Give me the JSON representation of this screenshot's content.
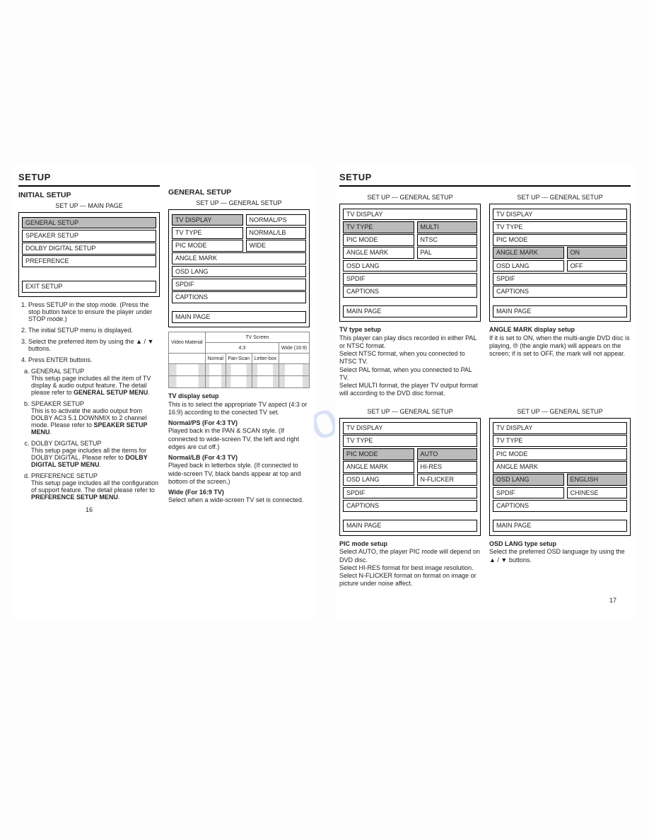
{
  "leftPage": {
    "heading": "SETUP",
    "colA": {
      "h2": "INITIAL SETUP",
      "sub": "SET UP --- MAIN PAGE",
      "menu": [
        {
          "label": "GENERAL SETUP",
          "sel": true
        },
        {
          "label": "SPEAKER SETUP"
        },
        {
          "label": "DOLBY DIGITAL SETUP"
        },
        {
          "label": "PREFERENCE"
        }
      ],
      "menuBottom": [
        {
          "label": "EXIT SETUP"
        }
      ],
      "steps": [
        "Press SETUP in the stop mode. (Press the stop button twice to ensure the player under STOP mode.)",
        "The initial SETUP menu is displayed.",
        "Select the preferred item by using the ▲ / ▼ buttons.",
        "Press ENTER buttons."
      ],
      "subitems": [
        {
          "t": "GENERAL SETUP",
          "b": "This setup page includes all the item of TV display & audio output feature. The detail please refer to ",
          "bold": "GENERAL SETUP MENU"
        },
        {
          "t": "SPEAKER SETUP",
          "b": "This is to activate the audio output from DOLBY AC3 5.1 DOWNMIX to 2 channel mode. Please refer to ",
          "bold": "SPEAKER SETUP MENU"
        },
        {
          "t": "DOLBY DIGITAL SETUP",
          "b": "This setup page includes all the items for DOLBY DIGITAL. Please refer to ",
          "bold": "DOLBY DIGITAL SETUP MENU"
        },
        {
          "t": "PREFERENCE SETUP",
          "b": "This setup page includes all the configuration of support feature. The detail please refer to ",
          "bold": "PREFERENCE SETUP MENU"
        }
      ],
      "pagenum": "16"
    },
    "colB": {
      "h2": "GENERAL SETUP",
      "sub": "SET UP --- GENERAL SETUP",
      "menuLeft": [
        "TV DISPLAY",
        "TV TYPE",
        "PIC MODE",
        "ANGLE MARK",
        "OSD LANG",
        "SPDIF",
        "CAPTIONS"
      ],
      "menuSelIdx": 0,
      "menuRight": [
        "NORMAL/PS",
        "NORMAL/LB",
        "WIDE"
      ],
      "menuBottom": "MAIN PAGE",
      "tvTable": {
        "header1": "TV Screen",
        "header2": [
          "4:3",
          "Wide (16:9)"
        ],
        "cols": [
          "Video Material",
          "Normal",
          "Pan-Scan",
          "Letter-box",
          ""
        ]
      },
      "sections": [
        {
          "h": "TV display setup",
          "lines": [
            "This is to select the appropriate TV aspect (4:3 or 16:9) according to the conected TV set."
          ]
        },
        {
          "h": "Normal/PS (For 4:3 TV)",
          "lines": [
            "Played back in the PAN & SCAN style. (If connected to wide-screen TV, the left and right edges are cut off.)"
          ]
        },
        {
          "h": "Normal/LB (For 4:3 TV)",
          "lines": [
            "Played back in letterbox style. (If connected to wide-screen TV, black bands appear at top and bottom of the screen.)"
          ]
        },
        {
          "h": "Wide (For 16:9 TV)",
          "lines": [
            "Select when a wide-screen TV set is connected."
          ]
        }
      ]
    }
  },
  "rightPage": {
    "heading": "SETUP",
    "blocks": [
      {
        "sub": "SET UP --- GENERAL SETUP",
        "menuLeft": [
          "TV DISPLAY",
          "TV TYPE",
          "PIC MODE",
          "ANGLE MARK",
          "OSD LANG",
          "SPDIF",
          "CAPTIONS"
        ],
        "selIdx": 1,
        "menuRight": [
          "MULTI",
          "NTSC",
          "PAL"
        ],
        "rightSelIdx": 0,
        "bottom": "MAIN PAGE",
        "h": "TV type setup",
        "body": [
          "This player can play discs recorded in either PAL or NTSC format.",
          "Select NTSC format, when you connected to NTSC TV.",
          "Select PAL format, when you connected to PAL TV.",
          "Select MULTI format, the player TV output format will according to the DVD disc format."
        ]
      },
      {
        "sub": "SET UP --- GENERAL SETUP",
        "menuLeft": [
          "TV DISPLAY",
          "TV TYPE",
          "PIC MODE",
          "ANGLE MARK",
          "OSD LANG",
          "SPDIF",
          "CAPTIONS"
        ],
        "selIdx": 3,
        "menuRight": [
          "ON",
          "OFF"
        ],
        "rightSelIdx": 0,
        "bottom": "MAIN PAGE",
        "h": "ANGLE MARK display setup",
        "body": [
          "If it is set to ON, when the multi-angle DVD disc is playing, ⦾ (the angle mark) will appears on the screen; if is set to OFF, the mark will not appear."
        ]
      },
      {
        "sub": "SET UP --- GENERAL SETUP",
        "menuLeft": [
          "TV DISPLAY",
          "TV TYPE",
          "PIC MODE",
          "ANGLE MARK",
          "OSD LANG",
          "SPDIF",
          "CAPTIONS"
        ],
        "selIdx": 2,
        "menuRight": [
          "AUTO",
          "HI-RES",
          "N-FLICKER"
        ],
        "rightSelIdx": 0,
        "bottom": "MAIN PAGE",
        "h": "PIC mode setup",
        "body": [
          "Select AUTO, the player PIC mode will depend on DVD disc.",
          "Select HI-RES format for best image resolution.",
          "Select N-FLICKER format on format on image or picture under noise affect."
        ]
      },
      {
        "sub": "SET UP --- GENERAL SETUP",
        "menuLeft": [
          "TV DISPLAY",
          "TV TYPE",
          "PIC MODE",
          "ANGLE MARK",
          "OSD LANG",
          "SPDIF",
          "CAPTIONS"
        ],
        "selIdx": 4,
        "menuRight": [
          "ENGLISH",
          "CHINESE"
        ],
        "rightSelIdx": 0,
        "bottom": "MAIN PAGE",
        "h": "OSD LANG type setup",
        "body": [
          "Select the preferred OSD language by using the ▲ / ▼ buttons."
        ]
      }
    ],
    "pagenum": "17"
  },
  "watermark": ".com"
}
